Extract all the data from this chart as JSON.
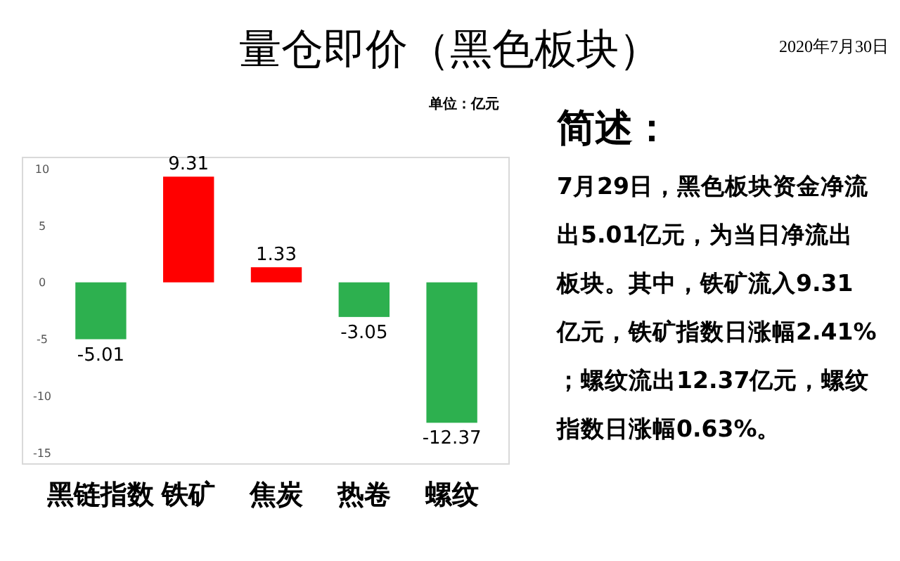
{
  "chart_data": {
    "type": "bar",
    "title": "量仓即价（黑色板块）",
    "categories": [
      "黑链指数",
      "铁矿",
      "焦炭",
      "热卷",
      "螺纹"
    ],
    "values": [
      -5.01,
      9.31,
      1.33,
      -3.05,
      -12.37
    ],
    "colors": [
      "#2db04f",
      "#ff0000",
      "#ff0000",
      "#2db04f",
      "#2db04f"
    ],
    "ylim": [
      -16,
      11
    ],
    "yticks": [
      -15,
      -10,
      -5,
      0,
      5,
      10
    ],
    "grid": false,
    "data_labels": true,
    "annotations": [
      "2020年7月30日",
      "单位：亿元",
      "简述：",
      "7月29日，黑色板块资金净流出5.01亿元，为当日净流出板块。其中，铁矿流入9.31亿元，铁矿指数日涨幅2.41%；螺纹流出12.37亿元，螺纹指数日涨幅0.63%。"
    ]
  }
}
